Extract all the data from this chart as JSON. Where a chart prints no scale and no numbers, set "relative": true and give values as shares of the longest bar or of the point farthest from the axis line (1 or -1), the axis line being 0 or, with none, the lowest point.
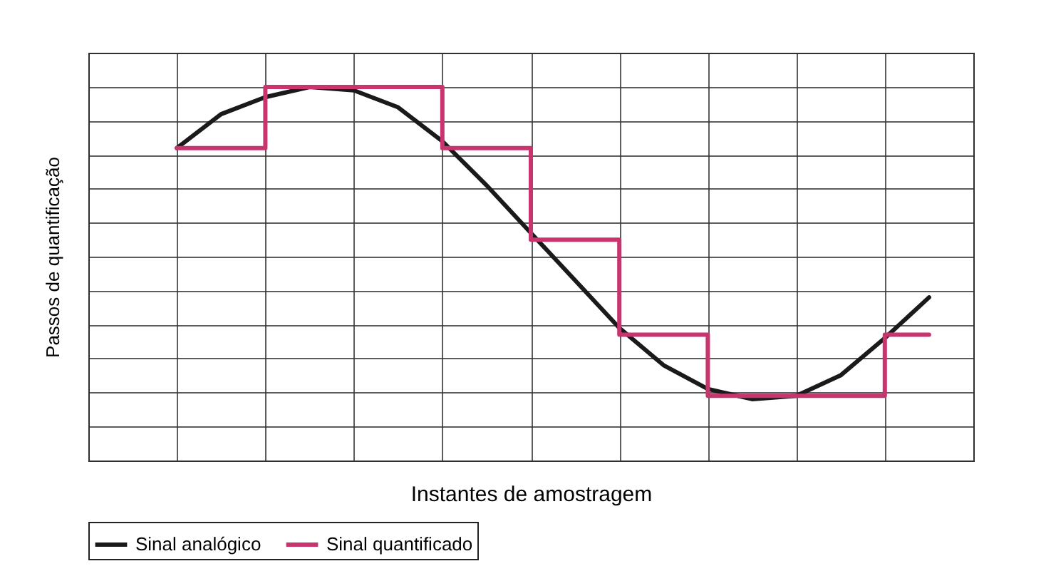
{
  "chart_data": {
    "type": "line",
    "xlabel": "Instantes de amostragem",
    "ylabel": "Passos de quantificação",
    "relative": true,
    "categories": [
      null,
      null,
      null,
      null,
      null,
      null,
      null,
      null,
      null,
      null,
      null,
      null,
      null,
      null,
      null,
      null,
      null,
      null,
      null,
      null,
      null
    ],
    "tick_labels": false,
    "grid": true,
    "legend": "bottom",
    "series": [
      {
        "name": "Sinal analógico",
        "color": "#1a1a1a",
        "values": [
          null,
          null,
          0.82,
          0.92,
          0.97,
          1,
          0.99,
          0.94,
          0.84,
          0.71,
          0.57,
          0.43,
          0.29,
          0.18,
          0.11,
          0.08,
          0.09,
          0.15,
          0.26,
          0.38,
          null
        ]
      },
      {
        "name": "Sinal quantificado",
        "type": "step",
        "color": "#c8356e",
        "values": [
          null,
          null,
          0.82,
          0.82,
          1,
          1,
          1,
          1,
          0.82,
          0.82,
          0.55,
          0.55,
          0.27,
          0.27,
          0.09,
          0.09,
          0.09,
          0.09,
          0.27,
          0.27,
          null
        ]
      }
    ]
  }
}
